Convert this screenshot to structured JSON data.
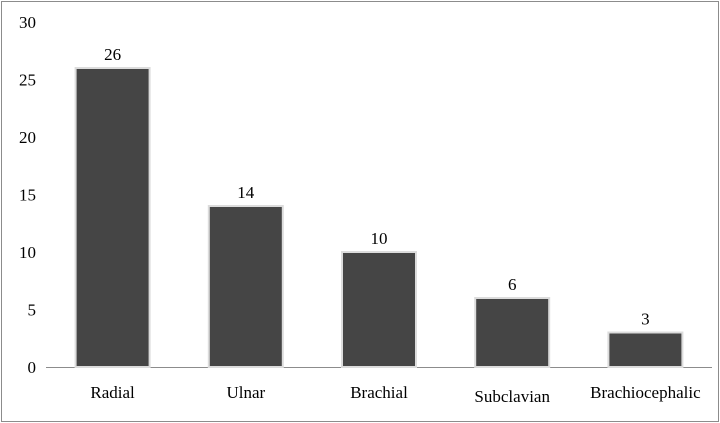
{
  "chart_data": {
    "type": "bar",
    "title": "",
    "xlabel": "",
    "ylabel": "",
    "categories": [
      "Radial",
      "Ulnar",
      "Brachial",
      "Subclavian",
      "Brachiocephalic"
    ],
    "values": [
      26,
      14,
      10,
      6,
      3
    ],
    "data_labels": [
      "26",
      "14",
      "10",
      "6",
      "3"
    ],
    "ylim": [
      0,
      30
    ],
    "yticks": [
      "0",
      "5",
      "10",
      "15",
      "20",
      "25",
      "30"
    ],
    "grid": false,
    "legend": "none",
    "colors": {
      "bar": "#454545",
      "bar_edge": "#dcdcdc",
      "axis": "#8c8c8c",
      "frame": "#8c8c8c"
    }
  }
}
